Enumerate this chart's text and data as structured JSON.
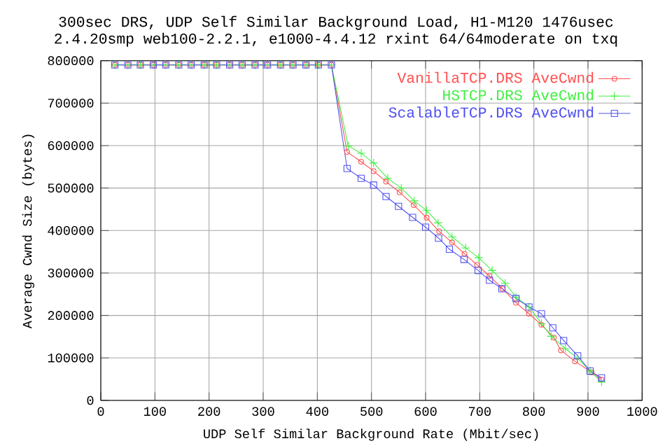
{
  "chart_data": {
    "type": "line",
    "title": "300sec DRS, UDP Self Similar Background Load, H1-M120 1476usec",
    "subtitle": "2.4.20smp web100-2.2.1, e1000-4.4.12 rxint 64/64moderate on txq",
    "xlabel": "UDP Self Similar Background Rate (Mbit/sec)",
    "ylabel": "Average Cwnd Size (bytes)",
    "xlim": [
      0,
      1000
    ],
    "ylim": [
      0,
      800000
    ],
    "xticks": [
      0,
      100,
      200,
      300,
      400,
      500,
      600,
      700,
      800,
      900,
      1000
    ],
    "yticks": [
      0,
      100000,
      200000,
      300000,
      400000,
      500000,
      600000,
      700000,
      800000
    ],
    "grid": true,
    "legend": "top right",
    "series": [
      {
        "name": "VanillaTCP.DRS AveCwnd",
        "color": "#ff5050",
        "marker": "circle",
        "x": [
          26,
          50,
          73,
          97,
          120,
          144,
          167,
          191,
          214,
          238,
          261,
          285,
          308,
          332,
          355,
          379,
          402,
          426,
          455,
          481,
          504,
          527,
          552,
          578,
          602,
          625,
          649,
          672,
          695,
          718,
          742,
          767,
          791,
          814,
          837,
          850,
          876,
          907,
          925
        ],
        "values": [
          790000,
          790000,
          790000,
          790000,
          790000,
          790000,
          790000,
          790000,
          790000,
          790000,
          790000,
          790000,
          790000,
          790000,
          790000,
          790000,
          790000,
          790000,
          585000,
          562000,
          540000,
          515000,
          490000,
          460000,
          430000,
          398000,
          372000,
          345000,
          319000,
          293000,
          263000,
          230000,
          204000,
          178000,
          148000,
          118000,
          92000,
          66000,
          49000
        ]
      },
      {
        "name": "HSTCP.DRS AveCwnd",
        "color": "#40f040",
        "marker": "cross",
        "x": [
          26,
          50,
          73,
          97,
          120,
          144,
          167,
          191,
          214,
          238,
          261,
          285,
          308,
          332,
          355,
          379,
          402,
          426,
          457,
          481,
          504,
          530,
          555,
          579,
          602,
          623,
          649,
          674,
          698,
          723,
          747,
          767,
          791,
          814,
          832,
          858,
          881,
          904,
          925
        ],
        "values": [
          790000,
          790000,
          790000,
          790000,
          790000,
          790000,
          790000,
          790000,
          790000,
          790000,
          790000,
          790000,
          790000,
          790000,
          790000,
          790000,
          790000,
          790000,
          599000,
          582000,
          559000,
          523000,
          500000,
          470000,
          447000,
          418000,
          385000,
          359000,
          336000,
          306000,
          276000,
          243000,
          220000,
          181000,
          151000,
          122000,
          99000,
          69000,
          43000
        ]
      },
      {
        "name": "ScalableTCP.DRS AveCwnd",
        "color": "#5050f0",
        "marker": "square",
        "x": [
          26,
          50,
          73,
          97,
          120,
          144,
          167,
          191,
          214,
          238,
          261,
          285,
          308,
          332,
          355,
          379,
          402,
          426,
          455,
          481,
          504,
          527,
          550,
          576,
          600,
          624,
          644,
          671,
          697,
          718,
          741,
          767,
          791,
          814,
          835,
          855,
          881,
          904,
          925
        ],
        "values": [
          790000,
          790000,
          790000,
          790000,
          790000,
          790000,
          790000,
          790000,
          790000,
          790000,
          790000,
          790000,
          790000,
          790000,
          790000,
          790000,
          790000,
          790000,
          546000,
          523000,
          507000,
          480000,
          457000,
          431000,
          408000,
          382000,
          356000,
          332000,
          306000,
          283000,
          263000,
          240000,
          220000,
          204000,
          171000,
          141000,
          105000,
          69000,
          53000
        ]
      }
    ]
  }
}
